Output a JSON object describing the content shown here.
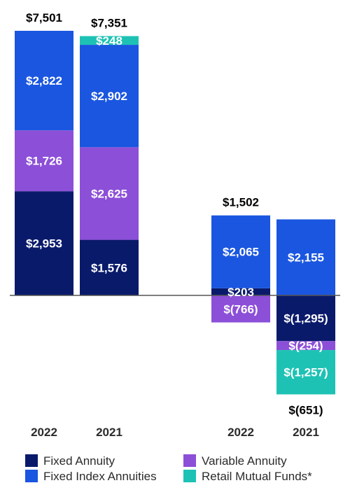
{
  "chart_data": {
    "type": "bar",
    "stacked": true,
    "unit": "$M",
    "groups": [
      {
        "bars": [
          {
            "year": "2022",
            "total_label": "$7,501",
            "segments": [
              {
                "series": "Fixed Annuity",
                "value": 2953,
                "label": "$2,953"
              },
              {
                "series": "Variable Annuity",
                "value": 1726,
                "label": "$1,726"
              },
              {
                "series": "Fixed Index Annuities",
                "value": 2822,
                "label": "$2,822"
              }
            ]
          },
          {
            "year": "2021",
            "total_label": "$7,351",
            "segments": [
              {
                "series": "Fixed Annuity",
                "value": 1576,
                "label": "$1,576"
              },
              {
                "series": "Variable Annuity",
                "value": 2625,
                "label": "$2,625"
              },
              {
                "series": "Fixed Index Annuities",
                "value": 2902,
                "label": "$2,902"
              },
              {
                "series": "Retail Mutual Funds*",
                "value": 248,
                "label": "$248"
              }
            ]
          }
        ]
      },
      {
        "bars": [
          {
            "year": "2022",
            "total_label": "$1,502",
            "segments": [
              {
                "series": "Fixed Annuity",
                "value": 203,
                "label": "$203"
              },
              {
                "series": "Fixed Index Annuities",
                "value": 2065,
                "label": "$2,065"
              },
              {
                "series": "Variable Annuity",
                "value": -766,
                "label": "$(766)"
              }
            ]
          },
          {
            "year": "2021",
            "total_label": "$(651)",
            "segments": [
              {
                "series": "Fixed Index Annuities",
                "value": 2155,
                "label": "$2,155"
              },
              {
                "series": "Fixed Annuity",
                "value": -1295,
                "label": "$(1,295)"
              },
              {
                "series": "Variable Annuity",
                "value": -254,
                "label": "$(254)"
              },
              {
                "series": "Retail Mutual Funds*",
                "value": -1257,
                "label": "$(1,257)"
              }
            ]
          }
        ]
      }
    ],
    "legend": [
      {
        "name": "Fixed Annuity",
        "color": "#0a1a6b"
      },
      {
        "name": "Variable Annuity",
        "color": "#8c4fd8"
      },
      {
        "name": "Fixed Index Annuities",
        "color": "#1a56e0"
      },
      {
        "name": "Retail Mutual Funds*",
        "color": "#1ec2b4"
      }
    ],
    "legend_position": "bottom"
  }
}
